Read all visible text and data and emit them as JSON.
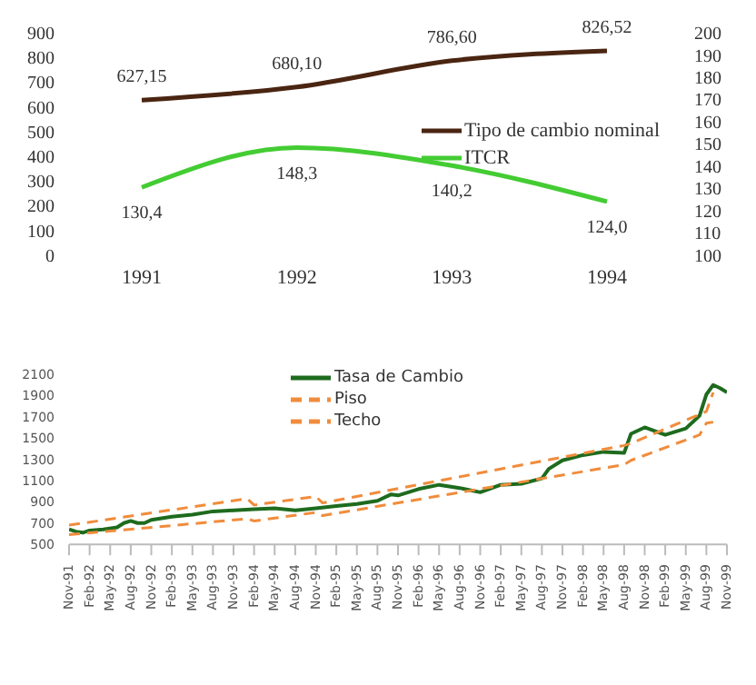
{
  "chart_data": [
    {
      "type": "line",
      "categories": [
        "1991",
        "1992",
        "1993",
        "1994"
      ],
      "series": [
        {
          "name": "Tipo de cambio nominal",
          "color": "#4a2511",
          "values": [
            627.15,
            680.1,
            786.6,
            826.52
          ],
          "value_labels": [
            "627,15",
            "680,10",
            "786,60",
            "826,52"
          ]
        },
        {
          "name": "ITCR",
          "color": "#44cc33",
          "axis": "y2",
          "values": [
            130.4,
            148.3,
            140.2,
            124.0
          ],
          "value_labels": [
            "130,4",
            "148,3",
            "140,2",
            "124,0"
          ]
        }
      ],
      "ylim": [
        0,
        900
      ],
      "yticks": [
        0,
        100,
        200,
        300,
        400,
        500,
        600,
        700,
        800,
        900
      ],
      "y2lim": [
        100,
        200
      ],
      "y2ticks": [
        100,
        110,
        120,
        130,
        140,
        150,
        160,
        170,
        180,
        190,
        200
      ],
      "legend": "right",
      "marker": "none"
    },
    {
      "type": "line",
      "series": [
        {
          "name": "Tasa de Cambio",
          "color": "#1e6b1e",
          "line_style": "solid",
          "x": [
            "1991-11",
            "1991-12",
            "1992-01",
            "1992-02",
            "1992-04",
            "1992-06",
            "1992-07",
            "1992-08",
            "1992-09",
            "1992-10",
            "1992-11",
            "1993-02",
            "1993-05",
            "1993-08",
            "1993-11",
            "1994-02",
            "1994-05",
            "1994-08",
            "1994-11",
            "1995-02",
            "1995-05",
            "1995-08",
            "1995-10",
            "1995-11",
            "1996-02",
            "1996-05",
            "1996-08",
            "1996-11",
            "1997-02",
            "1997-05",
            "1997-08",
            "1997-09",
            "1997-11",
            "1998-02",
            "1998-05",
            "1998-08",
            "1998-09",
            "1998-11",
            "1999-02",
            "1999-05",
            "1999-07",
            "1999-08",
            "1999-09",
            "1999-10",
            "1999-11"
          ],
          "values": [
            640,
            620,
            610,
            630,
            640,
            660,
            700,
            720,
            700,
            700,
            730,
            760,
            780,
            810,
            820,
            830,
            840,
            820,
            840,
            860,
            880,
            910,
            970,
            960,
            1020,
            1060,
            1030,
            990,
            1060,
            1070,
            1120,
            1210,
            1290,
            1340,
            1370,
            1360,
            1540,
            1600,
            1530,
            1590,
            1710,
            1910,
            2000,
            1970,
            1930
          ]
        },
        {
          "name": "Piso",
          "color": "#f08c3c",
          "line_style": "dashed",
          "x": [
            "1991-11",
            "1994-01",
            "1994-02",
            "1994-11",
            "1994-12",
            "1998-08",
            "1998-09",
            "1999-07",
            "1999-08",
            "1999-09"
          ],
          "values": [
            590,
            740,
            720,
            800,
            770,
            1250,
            1290,
            1530,
            1640,
            1650
          ]
        },
        {
          "name": "Techo",
          "color": "#f08c3c",
          "line_style": "dashed",
          "x": [
            "1991-11",
            "1994-01",
            "1994-02",
            "1994-11",
            "1994-12",
            "1998-08",
            "1998-09",
            "1999-08",
            "1999-09"
          ],
          "values": [
            680,
            930,
            870,
            950,
            890,
            1430,
            1450,
            1750,
            1930
          ]
        }
      ],
      "xlim": [
        "1991-11",
        "1999-11"
      ],
      "xticks": [
        {
          "value": "1991-11",
          "label": "Nov-91"
        },
        {
          "value": "1992-02",
          "label": "Feb-92"
        },
        {
          "value": "1992-05",
          "label": "May-92"
        },
        {
          "value": "1992-08",
          "label": "Aug-92"
        },
        {
          "value": "1992-11",
          "label": "Nov-92"
        },
        {
          "value": "1993-02",
          "label": "Feb-93"
        },
        {
          "value": "1993-05",
          "label": "May-93"
        },
        {
          "value": "1993-08",
          "label": "Aug-93"
        },
        {
          "value": "1993-11",
          "label": "Nov-93"
        },
        {
          "value": "1994-02",
          "label": "Feb-94"
        },
        {
          "value": "1994-05",
          "label": "May-94"
        },
        {
          "value": "1994-08",
          "label": "Aug-94"
        },
        {
          "value": "1994-11",
          "label": "Nov-94"
        },
        {
          "value": "1995-02",
          "label": "Feb-95"
        },
        {
          "value": "1995-05",
          "label": "May-95"
        },
        {
          "value": "1995-08",
          "label": "Aug-95"
        },
        {
          "value": "1995-11",
          "label": "Nov-95"
        },
        {
          "value": "1996-02",
          "label": "Feb-96"
        },
        {
          "value": "1996-05",
          "label": "May-96"
        },
        {
          "value": "1996-08",
          "label": "Aug-96"
        },
        {
          "value": "1996-11",
          "label": "Nov-96"
        },
        {
          "value": "1997-02",
          "label": "Feb-97"
        },
        {
          "value": "1997-05",
          "label": "May-97"
        },
        {
          "value": "1997-08",
          "label": "Aug-97"
        },
        {
          "value": "1997-11",
          "label": "Nov-97"
        },
        {
          "value": "1998-02",
          "label": "Feb-98"
        },
        {
          "value": "1998-05",
          "label": "May-98"
        },
        {
          "value": "1998-08",
          "label": "Aug-98"
        },
        {
          "value": "1998-11",
          "label": "Nov-98"
        },
        {
          "value": "1999-02",
          "label": "Feb-99"
        },
        {
          "value": "1999-05",
          "label": "May-99"
        },
        {
          "value": "1999-08",
          "label": "Aug-99"
        },
        {
          "value": "1999-11",
          "label": "Nov-99"
        }
      ],
      "ylim": [
        500,
        2100
      ],
      "yticks": [
        500,
        700,
        900,
        1100,
        1300,
        1500,
        1700,
        1900,
        2100
      ],
      "legend": "top left",
      "marker": "none"
    }
  ]
}
